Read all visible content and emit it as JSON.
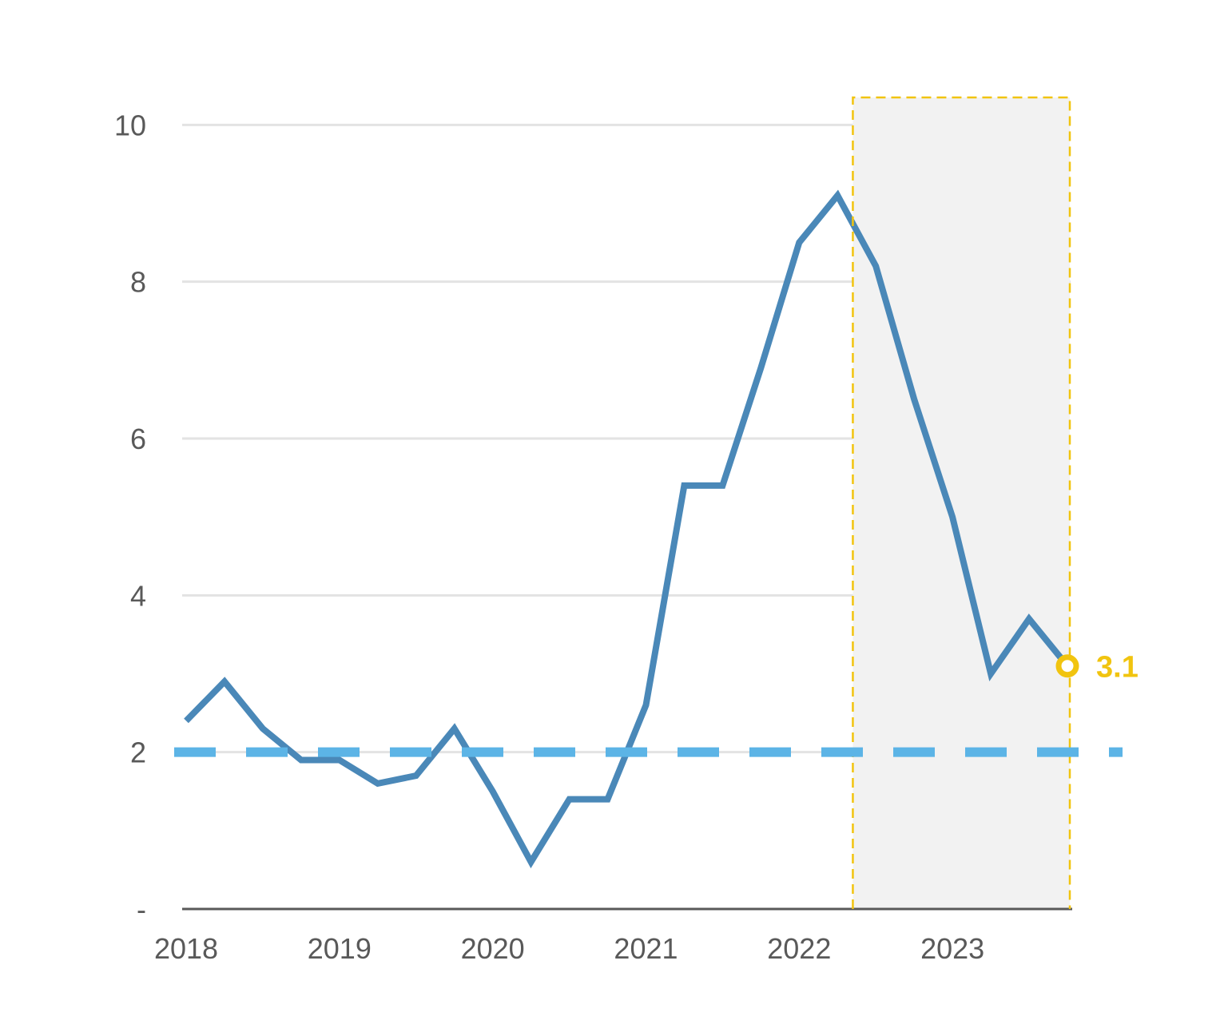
{
  "chart_data": {
    "type": "line",
    "x": [
      2018.0,
      2018.25,
      2018.5,
      2018.75,
      2019.0,
      2019.25,
      2019.5,
      2019.75,
      2020.0,
      2020.25,
      2020.5,
      2020.75,
      2021.0,
      2021.25,
      2021.5,
      2021.75,
      2022.0,
      2022.25,
      2022.5,
      2022.75,
      2023.0,
      2023.25,
      2023.5,
      2023.75
    ],
    "series": [
      {
        "values": [
          2.4,
          2.9,
          2.3,
          1.9,
          1.9,
          1.6,
          1.7,
          2.3,
          1.5,
          0.6,
          1.4,
          1.4,
          2.6,
          5.4,
          5.4,
          6.9,
          8.5,
          9.1,
          8.2,
          6.5,
          5.0,
          3.0,
          3.7,
          3.1
        ],
        "color": "#4a88b8"
      }
    ],
    "target_line": {
      "value": 2,
      "color": "#5cb4e6"
    },
    "shaded_region": {
      "x_start": 2022.35,
      "x_end": 2023.75,
      "fill": "#f2f2f2",
      "border_color": "#f1c40f"
    },
    "end_marker": {
      "label": "3.1",
      "color": "#f1c40f"
    },
    "x_ticks": [
      "2018",
      "2019",
      "2020",
      "2021",
      "2022",
      "2023"
    ],
    "y_ticks": [
      "-",
      "2",
      "4",
      "6",
      "8",
      "10"
    ],
    "y_tick_values": [
      0,
      2,
      4,
      6,
      8,
      10
    ],
    "ylim": [
      0,
      10.35
    ],
    "xlim": [
      2018.0,
      2023.75
    ],
    "grid": "horizontal"
  }
}
